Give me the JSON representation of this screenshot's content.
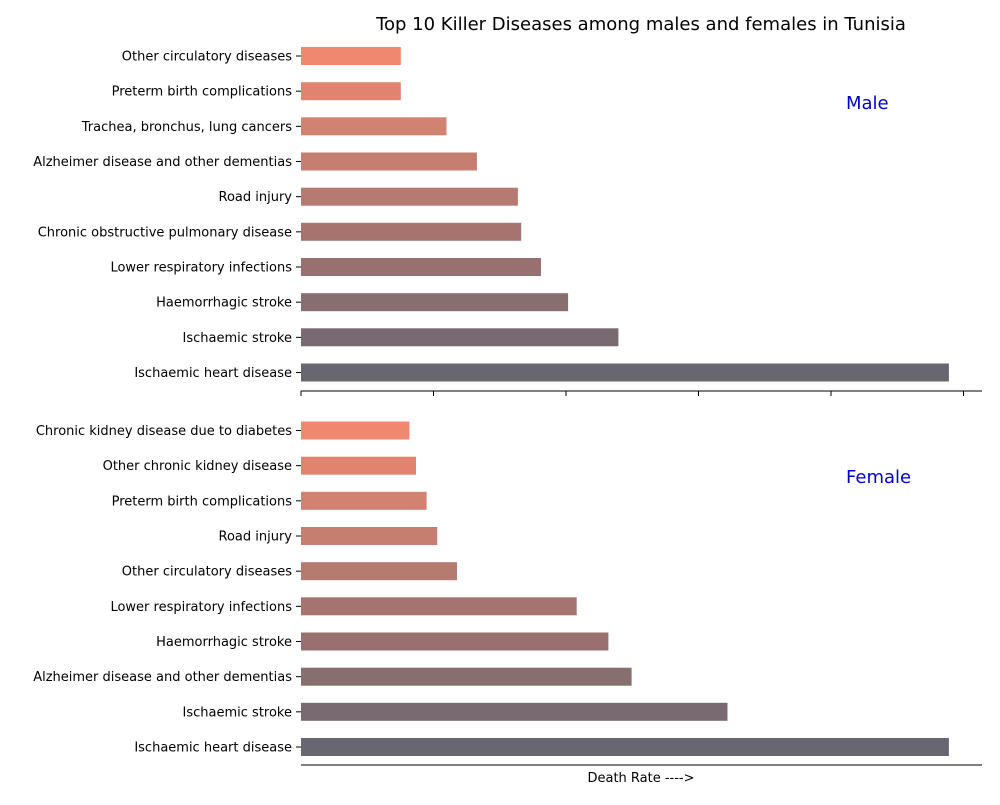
{
  "chart_data": {
    "type": "bar",
    "orientation": "horizontal",
    "title": "Top 10 Killer Diseases among males and females in Tunisia",
    "xlabel": "Death Rate ---->",
    "x_tick_labels_shown": false,
    "xlim": [
      0,
      103
    ],
    "grid": false,
    "legend": "none",
    "colors": [
      "#68676f",
      "#786a70",
      "#876e6f",
      "#97706f",
      "#a6746f",
      "#b57a70",
      "#c57e70",
      "#d28270",
      "#e08470",
      "#ef886e"
    ],
    "panels": [
      {
        "label": "Male",
        "label_color": "#0000cd",
        "categories": [
          "Ischaemic heart disease",
          "Ischaemic stroke",
          "Haemorrhagic stroke",
          "Lower respiratory infections",
          "Chronic obstructive pulmonary disease",
          "Road injury",
          "Alzheimer disease and other dementias",
          "Trachea, bronchus, lung cancers",
          "Preterm birth complications",
          "Other circulatory diseases"
        ],
        "values": [
          98,
          48,
          40.4,
          36.3,
          33.3,
          32.8,
          26.6,
          22,
          15.1,
          15.1
        ]
      },
      {
        "label": "Female",
        "label_color": "#0000cd",
        "categories": [
          "Ischaemic heart disease",
          "Ischaemic stroke",
          "Alzheimer disease and other dementias",
          "Haemorrhagic stroke",
          "Lower respiratory infections",
          "Other circulatory diseases",
          "Road injury",
          "Preterm birth complications",
          "Other chronic kidney disease",
          "Chronic kidney disease due to diabetes"
        ],
        "values": [
          98,
          64.5,
          50,
          46.5,
          41.7,
          23.6,
          20.6,
          19,
          17.4,
          16.4
        ]
      }
    ]
  }
}
